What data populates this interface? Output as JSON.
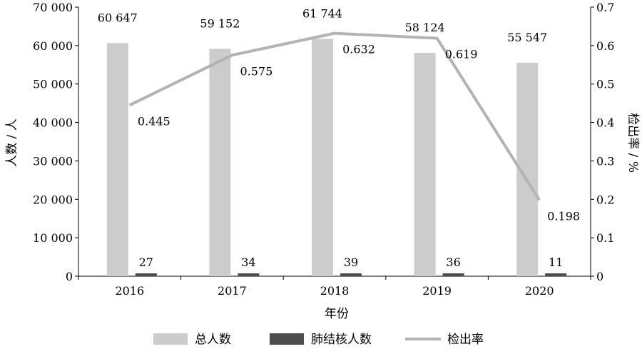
{
  "chart_data": {
    "type": "bar",
    "categories": [
      "2016",
      "2017",
      "2018",
      "2019",
      "2020"
    ],
    "series": [
      {
        "name": "总人数",
        "type": "bar",
        "axis": "left",
        "color": "#cccccc",
        "values": [
          60647,
          59152,
          61744,
          58124,
          55547
        ],
        "labels": [
          "60 647",
          "59 152",
          "61 744",
          "58 124",
          "55 547"
        ]
      },
      {
        "name": "肺结核人数",
        "type": "bar",
        "axis": "left",
        "color": "#4d4d4d",
        "values": [
          27,
          34,
          39,
          36,
          11
        ],
        "labels": [
          "27",
          "34",
          "39",
          "36",
          "11"
        ]
      },
      {
        "name": "检出率",
        "type": "line",
        "axis": "right",
        "color": "#b3b3b3",
        "values": [
          0.445,
          0.575,
          0.632,
          0.619,
          0.198
        ],
        "labels": [
          "0.445",
          "0.575",
          "0.632",
          "0.619",
          "0.198"
        ]
      }
    ],
    "xlabel": "年份",
    "ylabel": "人数 / 人",
    "y2label": "检出率 / %",
    "ylim": [
      0,
      70000
    ],
    "y2lim": [
      0,
      0.7
    ],
    "y_ticks": [
      "0",
      "10 000",
      "20 000",
      "30 000",
      "40 000",
      "50 000",
      "60 000",
      "70 000"
    ],
    "y2_ticks": [
      "0",
      "0.1",
      "0.2",
      "0.3",
      "0.4",
      "0.5",
      "0.6",
      "0.7"
    ],
    "grid": false,
    "legend_position": "bottom"
  }
}
